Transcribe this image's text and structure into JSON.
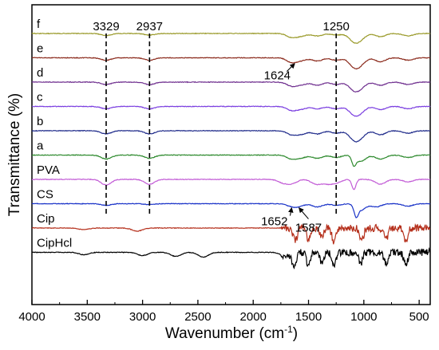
{
  "chart_data": {
    "type": "line",
    "xlabel": "Wavenumber (cm",
    "xlabel_sup": "-1",
    "xlabel_end": ")",
    "ylabel": "Transmittance (%)",
    "xlim": [
      4000,
      400
    ],
    "xticks": [
      4000,
      3500,
      3000,
      2500,
      2000,
      1500,
      1000,
      500
    ],
    "grid": false,
    "series": [
      {
        "name": "f",
        "color": "#9a9a2a",
        "offset": 0,
        "peaks": [
          [
            3329,
            2.5
          ],
          [
            2937,
            2
          ],
          [
            1650,
            5
          ],
          [
            1560,
            3
          ],
          [
            1420,
            3
          ],
          [
            1250,
            2
          ],
          [
            1090,
            9
          ],
          [
            1030,
            6
          ],
          [
            850,
            4
          ],
          [
            600,
            3
          ]
        ]
      },
      {
        "name": "e",
        "color": "#8b2a1c",
        "offset": 1,
        "peaks": [
          [
            3329,
            3
          ],
          [
            2937,
            3
          ],
          [
            1650,
            6
          ],
          [
            1560,
            3
          ],
          [
            1420,
            4
          ],
          [
            1250,
            3
          ],
          [
            1090,
            10
          ],
          [
            1030,
            7
          ],
          [
            850,
            5
          ],
          [
            600,
            3
          ]
        ]
      },
      {
        "name": "d",
        "color": "#6f2f8f",
        "offset": 2,
        "peaks": [
          [
            3329,
            3
          ],
          [
            2937,
            3
          ],
          [
            1650,
            5
          ],
          [
            1560,
            3
          ],
          [
            1420,
            4
          ],
          [
            1250,
            3
          ],
          [
            1090,
            9
          ],
          [
            1030,
            6
          ],
          [
            850,
            4
          ],
          [
            600,
            3
          ]
        ]
      },
      {
        "name": "c",
        "color": "#7b3fe0",
        "offset": 3,
        "peaks": [
          [
            3329,
            3
          ],
          [
            2937,
            3
          ],
          [
            1650,
            5
          ],
          [
            1560,
            3
          ],
          [
            1420,
            3
          ],
          [
            1250,
            3
          ],
          [
            1090,
            9
          ],
          [
            1030,
            6
          ],
          [
            850,
            4
          ],
          [
            600,
            3
          ]
        ]
      },
      {
        "name": "b",
        "color": "#1e2a8a",
        "offset": 4,
        "peaks": [
          [
            3329,
            4
          ],
          [
            2937,
            4
          ],
          [
            1650,
            5
          ],
          [
            1560,
            4
          ],
          [
            1420,
            4
          ],
          [
            1250,
            3
          ],
          [
            1090,
            10
          ],
          [
            1030,
            7
          ],
          [
            850,
            5
          ],
          [
            600,
            3
          ]
        ]
      },
      {
        "name": "a",
        "color": "#2e8a2e",
        "offset": 5,
        "peaks": [
          [
            3329,
            5
          ],
          [
            2937,
            4
          ],
          [
            1650,
            5
          ],
          [
            1560,
            3
          ],
          [
            1420,
            4
          ],
          [
            1250,
            3
          ],
          [
            1090,
            11
          ],
          [
            1030,
            8
          ],
          [
            850,
            5
          ],
          [
            600,
            3
          ]
        ]
      },
      {
        "name": "PVA",
        "color": "#c25cd6",
        "offset": 6,
        "peaks": [
          [
            3329,
            7
          ],
          [
            2937,
            6
          ],
          [
            1730,
            4
          ],
          [
            1650,
            5
          ],
          [
            1430,
            6
          ],
          [
            1330,
            5
          ],
          [
            1250,
            4
          ],
          [
            1090,
            13
          ],
          [
            850,
            6
          ],
          [
            600,
            3
          ]
        ]
      },
      {
        "name": "CS",
        "color": "#1a33c8",
        "offset": 7,
        "peaks": [
          [
            3329,
            2
          ],
          [
            2937,
            1
          ],
          [
            1652,
            3
          ],
          [
            1587,
            3
          ],
          [
            1420,
            4
          ],
          [
            1250,
            2
          ],
          [
            1070,
            12
          ],
          [
            1030,
            8
          ],
          [
            890,
            4
          ],
          [
            600,
            3
          ]
        ]
      },
      {
        "name": "Cip",
        "color": "#b5301c",
        "offset": 8,
        "peaks": [
          [
            3530,
            2
          ],
          [
            3050,
            4
          ],
          [
            1620,
            16
          ],
          [
            1500,
            14
          ],
          [
            1380,
            12
          ],
          [
            1270,
            18
          ],
          [
            1020,
            16
          ],
          [
            800,
            15
          ],
          [
            620,
            17
          ]
        ]
      },
      {
        "name": "CipHcl",
        "color": "#000000",
        "offset": 9,
        "peaks": [
          [
            3530,
            3
          ],
          [
            3000,
            4
          ],
          [
            2700,
            5
          ],
          [
            2450,
            6
          ],
          [
            1700,
            6
          ],
          [
            1630,
            18
          ],
          [
            1500,
            16
          ],
          [
            1380,
            14
          ],
          [
            1270,
            18
          ],
          [
            1030,
            14
          ],
          [
            800,
            14
          ],
          [
            620,
            16
          ]
        ]
      }
    ],
    "reference_lines": [
      {
        "label": "3329",
        "x": 3329
      },
      {
        "label": "2937",
        "x": 2937
      },
      {
        "label": "1250",
        "x": 1250
      }
    ],
    "annotations": [
      {
        "label": "1624",
        "x": 1624,
        "target_series": "e"
      },
      {
        "label": "1652",
        "x": 1652,
        "target_series": "CS"
      },
      {
        "label": "1587",
        "x": 1587,
        "target_series": "CS"
      }
    ]
  }
}
